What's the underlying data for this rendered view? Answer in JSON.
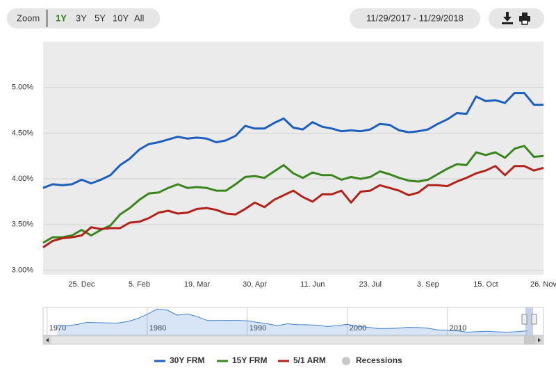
{
  "ui": {
    "zoom_label": "Zoom",
    "zoom_buttons": [
      "1Y",
      "3Y",
      "5Y",
      "10Y",
      "All"
    ],
    "date_range": "11/29/2017 - 11/29/2018",
    "recessions_label": "Recessions",
    "recessions_color": "#c8c8c8"
  },
  "chart_data": {
    "type": "line",
    "categories": [
      null,
      null,
      null,
      null,
      "25. Dec",
      null,
      null,
      null,
      null,
      null,
      "5. Feb",
      null,
      null,
      null,
      null,
      null,
      "19. Mar",
      null,
      null,
      null,
      null,
      null,
      "30. Apr",
      null,
      null,
      null,
      null,
      null,
      "11. Jun",
      null,
      null,
      null,
      null,
      null,
      "23. Jul",
      null,
      null,
      null,
      null,
      null,
      "3. Sep",
      null,
      null,
      null,
      null,
      null,
      "15. Oct",
      null,
      null,
      null,
      null,
      null,
      "26. Nov"
    ],
    "series": [
      {
        "name": "30Y FRM",
        "color": "#1d5fbf",
        "values": [
          3.9,
          3.94,
          3.93,
          3.94,
          3.99,
          3.95,
          3.99,
          4.04,
          4.15,
          4.22,
          4.32,
          4.38,
          4.4,
          4.43,
          4.46,
          4.44,
          4.45,
          4.44,
          4.4,
          4.42,
          4.47,
          4.58,
          4.55,
          4.55,
          4.61,
          4.66,
          4.56,
          4.54,
          4.62,
          4.57,
          4.55,
          4.52,
          4.53,
          4.52,
          4.54,
          4.6,
          4.59,
          4.53,
          4.51,
          4.52,
          4.54,
          4.6,
          4.65,
          4.72,
          4.71,
          4.9,
          4.85,
          4.86,
          4.83,
          4.94,
          4.94,
          4.81,
          4.81
        ]
      },
      {
        "name": "15Y FRM",
        "color": "#3a861c",
        "values": [
          3.3,
          3.36,
          3.36,
          3.38,
          3.44,
          3.38,
          3.44,
          3.49,
          3.61,
          3.68,
          3.77,
          3.84,
          3.85,
          3.9,
          3.94,
          3.9,
          3.91,
          3.9,
          3.87,
          3.87,
          3.94,
          4.02,
          4.03,
          4.01,
          4.08,
          4.15,
          4.06,
          4.01,
          4.07,
          4.04,
          4.04,
          3.99,
          4.02,
          4.0,
          4.02,
          4.08,
          4.05,
          4.01,
          3.98,
          3.97,
          3.99,
          4.05,
          4.11,
          4.16,
          4.15,
          4.29,
          4.26,
          4.29,
          4.23,
          4.33,
          4.36,
          4.24,
          4.25
        ]
      },
      {
        "name": "5/1 ARM",
        "color": "#b3221a",
        "values": [
          3.25,
          3.32,
          3.35,
          3.36,
          3.38,
          3.47,
          3.45,
          3.46,
          3.46,
          3.52,
          3.53,
          3.57,
          3.63,
          3.65,
          3.62,
          3.63,
          3.67,
          3.68,
          3.66,
          3.62,
          3.61,
          3.67,
          3.74,
          3.69,
          3.77,
          3.82,
          3.87,
          3.8,
          3.75,
          3.83,
          3.83,
          3.87,
          3.74,
          3.86,
          3.87,
          3.93,
          3.9,
          3.87,
          3.82,
          3.85,
          3.93,
          3.93,
          3.92,
          3.97,
          4.01,
          4.06,
          4.09,
          4.14,
          4.04,
          4.14,
          4.14,
          4.09,
          4.12
        ]
      }
    ],
    "ylim": [
      2.95,
      5.5
    ],
    "yticks": [
      {
        "value": 3,
        "label": "3.00%"
      },
      {
        "value": 3.5,
        "label": "3.50%"
      },
      {
        "value": 4,
        "label": "4.00%"
      },
      {
        "value": 4.5,
        "label": "4.50%"
      },
      {
        "value": 5,
        "label": "5.00%"
      }
    ],
    "grid": true,
    "navigator": {
      "x": [
        1971,
        1972,
        1973,
        1974,
        1975,
        1976,
        1977,
        1978,
        1979,
        1980,
        1981,
        1982,
        1983,
        1984,
        1985,
        1986,
        1987,
        1988,
        1989,
        1990,
        1991,
        1992,
        1993,
        1994,
        1995,
        1996,
        1997,
        1998,
        1999,
        2000,
        2001,
        2002,
        2003,
        2004,
        2005,
        2006,
        2007,
        2008,
        2009,
        2010,
        2011,
        2012,
        2013,
        2014,
        2015,
        2016,
        2017,
        2018
      ],
      "values": [
        7.5,
        7.4,
        8.0,
        9.2,
        9.0,
        8.9,
        8.8,
        9.6,
        11.2,
        13.7,
        16.6,
        16.0,
        13.2,
        13.9,
        12.4,
        10.2,
        10.2,
        10.3,
        10.3,
        10.1,
        9.2,
        8.4,
        7.3,
        8.4,
        7.9,
        7.8,
        7.6,
        6.9,
        7.4,
        8.1,
        7.0,
        6.5,
        5.8,
        5.8,
        5.9,
        6.4,
        6.3,
        6.0,
        5.0,
        4.7,
        4.5,
        3.7,
        4.0,
        4.2,
        3.9,
        3.7,
        4.0,
        4.5
      ],
      "xlim": [
        1969.6,
        2019.6
      ],
      "xticks": [
        1970,
        1980,
        1990,
        2000,
        2010
      ],
      "ylim": [
        2,
        17.5
      ],
      "color": "#3b7fd0"
    }
  }
}
